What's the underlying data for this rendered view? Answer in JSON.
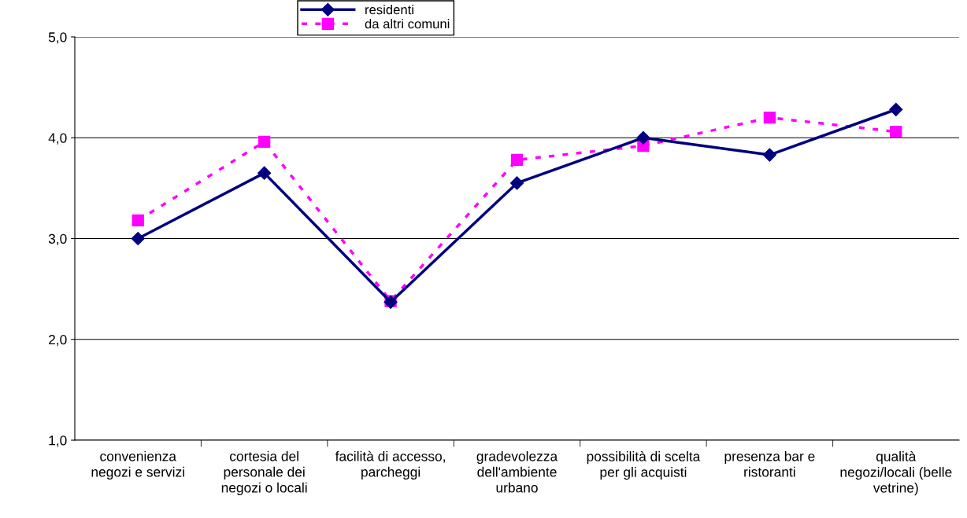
{
  "chart_data": {
    "type": "line",
    "categories": [
      "convenienza negozi e servizi",
      "cortesia del personale dei negozi o locali",
      "facilità di accesso, parcheggi",
      "gradevolezza dell'ambiente urbano",
      "possibilità di scelta per gli acquisti",
      "presenza bar e ristoranti",
      "qualità negozi/locali (belle vetrine)"
    ],
    "series": [
      {
        "name": "residenti",
        "color": "#000080",
        "marker": "diamond",
        "line_style": "solid",
        "values": [
          3.0,
          3.65,
          2.37,
          3.55,
          4.0,
          3.83,
          4.28
        ]
      },
      {
        "name": "da altri comuni",
        "color": "#ff00ff",
        "marker": "square",
        "line_style": "dashed",
        "values": [
          3.18,
          3.96,
          2.38,
          3.78,
          3.92,
          4.2,
          4.06
        ]
      }
    ],
    "ylim": [
      1,
      5
    ],
    "yticks": [
      {
        "value": 1,
        "label": "1,0"
      },
      {
        "value": 2,
        "label": "2,0"
      },
      {
        "value": 3,
        "label": "3,0"
      },
      {
        "value": 4,
        "label": "4,0"
      },
      {
        "value": 5,
        "label": "5,0"
      }
    ],
    "grid": "y",
    "legend": "top"
  }
}
